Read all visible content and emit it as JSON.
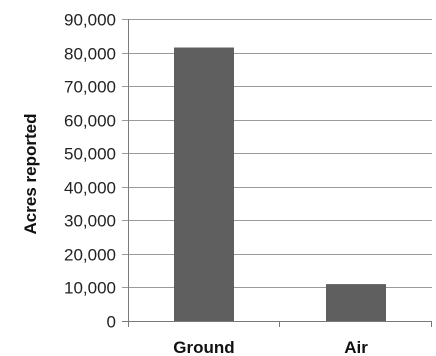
{
  "chart_data": {
    "type": "bar",
    "categories": [
      "Ground",
      "Air"
    ],
    "values": [
      81500,
      11000
    ],
    "title": "",
    "xlabel": "",
    "ylabel": "Acres reported",
    "ylim": [
      0,
      90000
    ],
    "yticks": [
      0,
      10000,
      20000,
      30000,
      40000,
      50000,
      60000,
      70000,
      80000,
      90000
    ],
    "ytick_labels": [
      "0",
      "10,000",
      "20,000",
      "30,000",
      "40,000",
      "50,000",
      "60,000",
      "70,000",
      "80,000",
      "90,000"
    ],
    "grid": true,
    "bar_color": "#5f5f5f"
  }
}
